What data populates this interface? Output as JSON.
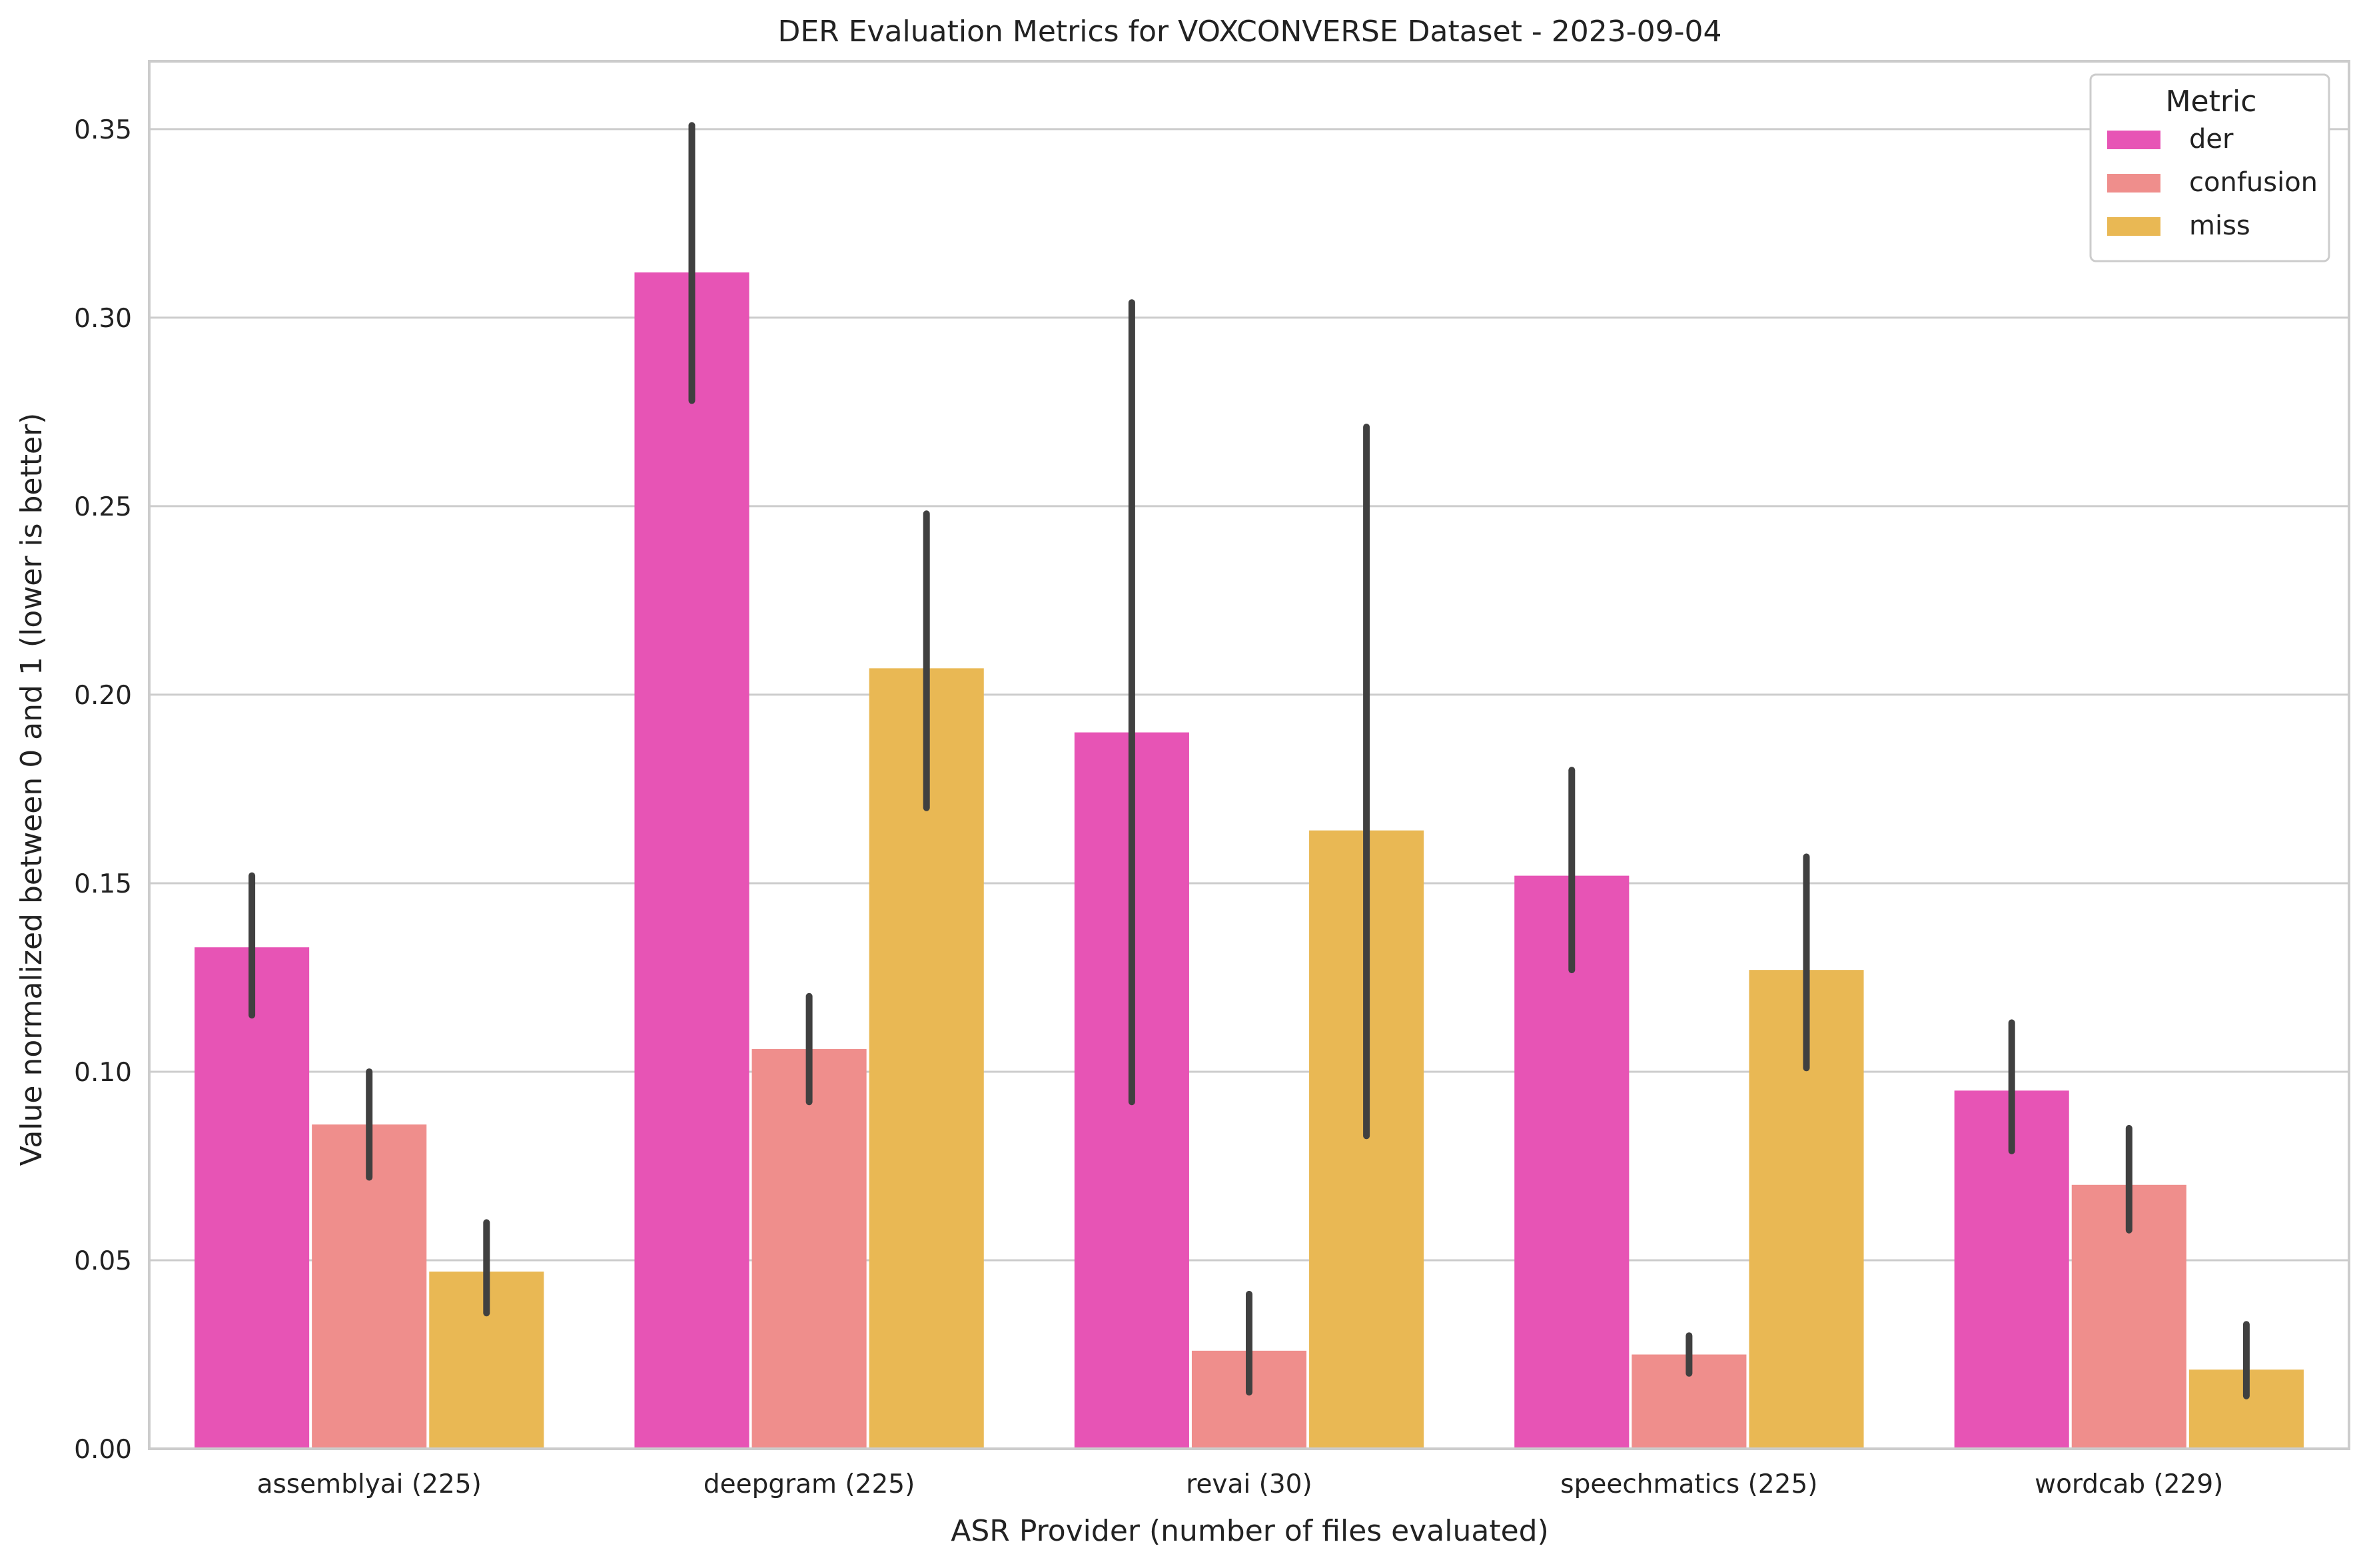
{
  "chart_data": {
    "type": "bar",
    "title": "DER Evaluation Metrics for VOXCONVERSE Dataset - 2023-09-04",
    "xlabel": "ASR Provider (number of files evaluated)",
    "ylabel": "Value normalized between 0 and 1 (lower is better)",
    "ylim": [
      0,
      0.368
    ],
    "yticks": [
      "0.00",
      "0.05",
      "0.10",
      "0.15",
      "0.20",
      "0.25",
      "0.30",
      "0.35"
    ],
    "grid": "horizontal",
    "legend": {
      "title": "Metric",
      "placement": "top-right"
    },
    "categories": [
      "assemblyai (225)",
      "deepgram (225)",
      "revai (30)",
      "speechmatics (225)",
      "wordcab (229)"
    ],
    "series": [
      {
        "name": "der",
        "color": "#e754b5",
        "values": [
          0.133,
          0.312,
          0.19,
          0.152,
          0.095
        ],
        "ci_low": [
          0.115,
          0.278,
          0.092,
          0.127,
          0.079
        ],
        "ci_high": [
          0.152,
          0.351,
          0.304,
          0.18,
          0.113
        ]
      },
      {
        "name": "confusion",
        "color": "#ef8e8c",
        "values": [
          0.086,
          0.106,
          0.026,
          0.025,
          0.07
        ],
        "ci_low": [
          0.072,
          0.092,
          0.015,
          0.02,
          0.058
        ],
        "ci_high": [
          0.1,
          0.12,
          0.041,
          0.03,
          0.085
        ]
      },
      {
        "name": "miss",
        "color": "#e9b854",
        "values": [
          0.047,
          0.207,
          0.164,
          0.127,
          0.021
        ],
        "ci_low": [
          0.036,
          0.17,
          0.083,
          0.101,
          0.014
        ],
        "ci_high": [
          0.06,
          0.248,
          0.271,
          0.157,
          0.033
        ]
      }
    ]
  }
}
